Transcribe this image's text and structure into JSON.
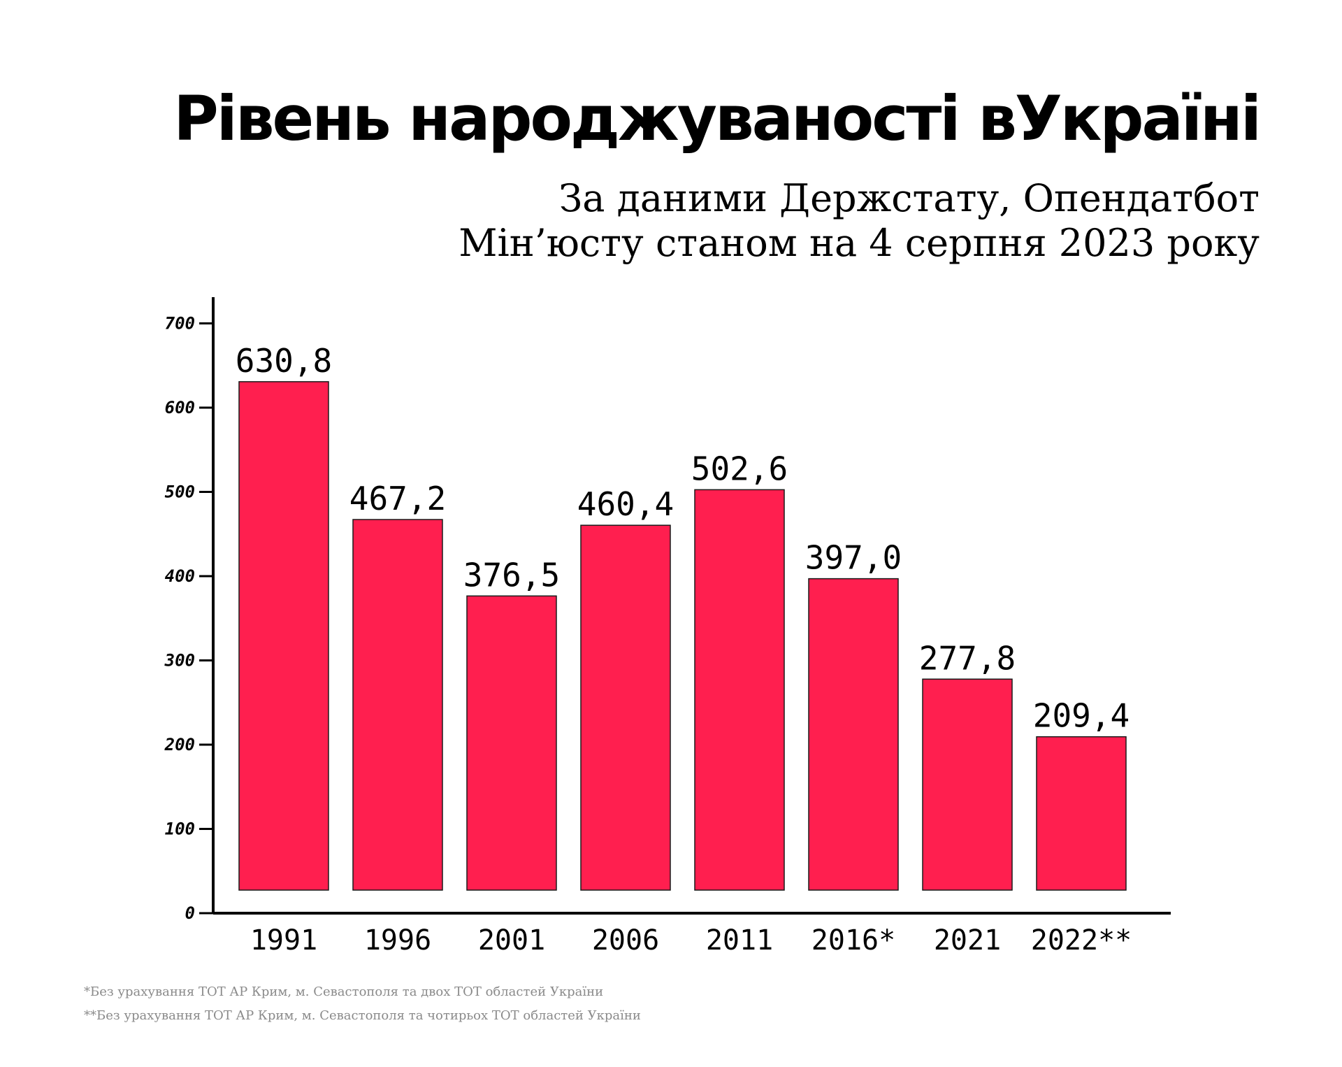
{
  "colors": {
    "bar": "#ff1f4f",
    "axis": "#000000",
    "footnote": "#8a8a8a"
  },
  "chart_data": {
    "type": "bar",
    "title": "Рівень народжуваності вУкраїні",
    "subtitle_lines": [
      "За даними Держстату, Опендатбот",
      "Мін’юсту станом на 4 серпня 2023 року"
    ],
    "categories": [
      "1991",
      "1996",
      "2001",
      "2006",
      "2011",
      "2016*",
      "2021",
      "2022**"
    ],
    "values": [
      630.8,
      467.2,
      376.5,
      460.4,
      502.6,
      397.0,
      277.8,
      209.4
    ],
    "value_labels": [
      "630,8",
      "467,2",
      "376,5",
      "460,4",
      "502,6",
      "397,0",
      "277,8",
      "209,4"
    ],
    "y_ticks": [
      0,
      100,
      200,
      300,
      400,
      500,
      600,
      700
    ],
    "ylim": [
      0,
      700
    ],
    "xlabel": "",
    "ylabel": "",
    "grid": false,
    "legend": "none"
  },
  "footnotes": [
    "*Без урахування ТОТ АР Крим, м. Севастополя та двох ТОТ областей України",
    "**Без урахування ТОТ АР Крим, м. Севастополя та чотирьох ТОТ областей України"
  ]
}
